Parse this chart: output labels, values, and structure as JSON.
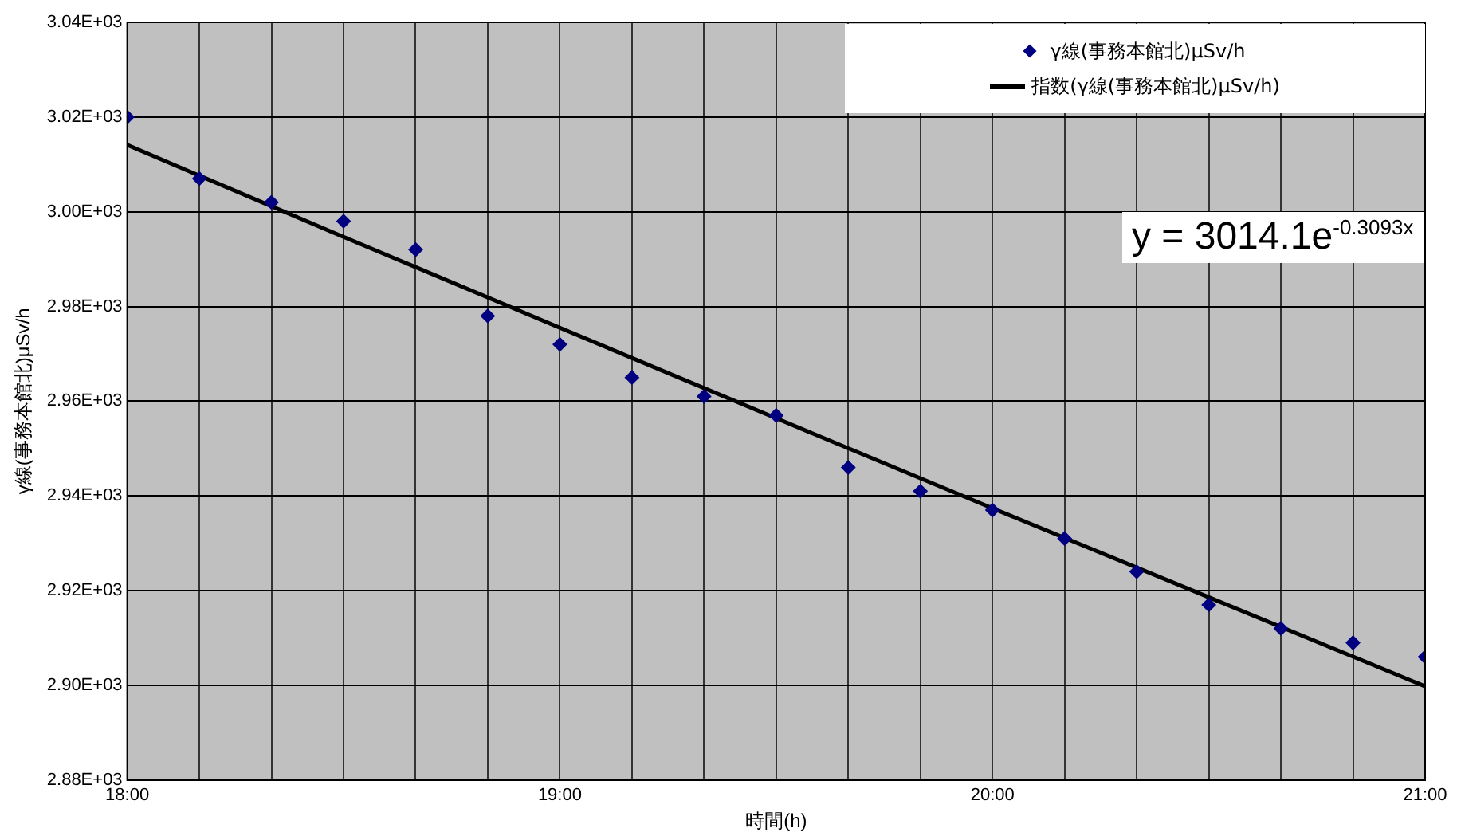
{
  "chart_data": {
    "type": "scatter",
    "xlabel": "時間(h)",
    "ylabel": "γ線(事務本館北)μSv/h",
    "x": [
      18,
      18.1667,
      18.3333,
      18.5,
      18.6667,
      18.8333,
      19,
      19.1667,
      19.3333,
      19.5,
      19.6667,
      19.8333,
      20,
      20.1667,
      20.3333,
      20.5,
      20.6667,
      20.8333,
      21
    ],
    "series": [
      {
        "name": "γ線(事務本館北)μSv/h",
        "color": "#000080",
        "marker": "diamond",
        "values": [
          3020,
          3007,
          3002,
          2998,
          2992,
          2978,
          2972,
          2965,
          2961,
          2957,
          2946,
          2941,
          2937,
          2931,
          2924,
          2917,
          2912,
          2909,
          2906
        ]
      },
      {
        "name": "指数(γ線(事務本館北)μSv/h)",
        "type": "line",
        "color": "#000000",
        "marker": "none",
        "line_style": "solid",
        "x": [
          18,
          18.5,
          19,
          19.5,
          20,
          20.5,
          21
        ],
        "values": [
          3014.1,
          2994.7,
          2975.5,
          2956.4,
          2937.4,
          2918.6,
          2899.8
        ]
      }
    ],
    "xlim": [
      18,
      21
    ],
    "xticks": [
      {
        "value": 18,
        "label": "18:00"
      },
      {
        "value": 18.1667,
        "label": null
      },
      {
        "value": 18.3333,
        "label": null
      },
      {
        "value": 18.5,
        "label": null
      },
      {
        "value": 18.6667,
        "label": null
      },
      {
        "value": 18.8333,
        "label": null
      },
      {
        "value": 19,
        "label": "19:00"
      },
      {
        "value": 19.1667,
        "label": null
      },
      {
        "value": 19.3333,
        "label": null
      },
      {
        "value": 19.5,
        "label": null
      },
      {
        "value": 19.6667,
        "label": null
      },
      {
        "value": 19.8333,
        "label": null
      },
      {
        "value": 20,
        "label": "20:00"
      },
      {
        "value": 20.1667,
        "label": null
      },
      {
        "value": 20.3333,
        "label": null
      },
      {
        "value": 20.5,
        "label": null
      },
      {
        "value": 20.6667,
        "label": null
      },
      {
        "value": 20.8333,
        "label": null
      },
      {
        "value": 21,
        "label": "21:00"
      }
    ],
    "ylim": [
      2880,
      3040
    ],
    "yticks": [
      {
        "value": 2880,
        "label": "2.88E+03"
      },
      {
        "value": 2900,
        "label": "2.90E+03"
      },
      {
        "value": 2920,
        "label": "2.92E+03"
      },
      {
        "value": 2940,
        "label": "2.94E+03"
      },
      {
        "value": 2960,
        "label": "2.96E+03"
      },
      {
        "value": 2980,
        "label": "2.98E+03"
      },
      {
        "value": 3000,
        "label": "3.00E+03"
      },
      {
        "value": 3020,
        "label": "3.02E+03"
      },
      {
        "value": 3040,
        "label": "3.04E+03"
      }
    ],
    "grid": true,
    "legend": "top right",
    "annotations": [
      "y = 3014.1e$^{-0.3093x}$"
    ]
  }
}
